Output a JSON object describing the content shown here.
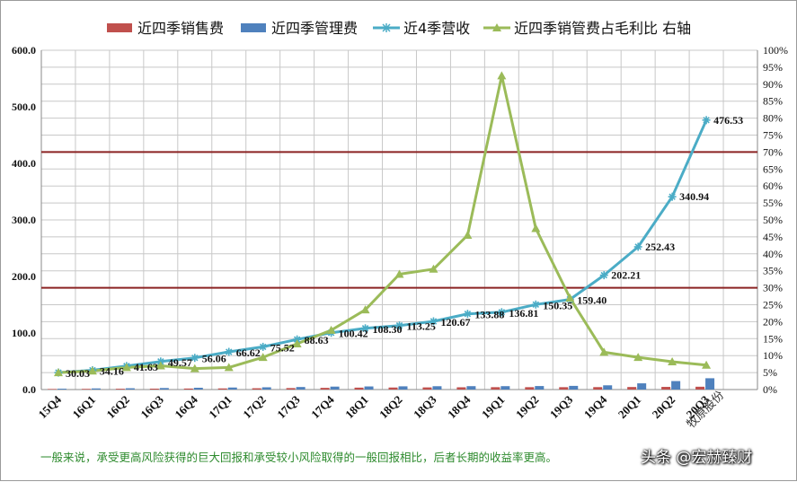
{
  "chart_data": {
    "type": "bar+line",
    "categories": [
      "15Q4",
      "16Q1",
      "16Q2",
      "16Q3",
      "16Q4",
      "17Q1",
      "17Q2",
      "17Q3",
      "17Q4",
      "18Q1",
      "18Q2",
      "18Q3",
      "18Q4",
      "19Q1",
      "19Q2",
      "19Q3",
      "19Q4",
      "20Q1",
      "20Q2",
      "20Q3"
    ],
    "series": [
      {
        "name": "近四季销售费",
        "type": "bar",
        "axis": "left",
        "color": "#c0504d",
        "values": [
          1.0,
          1.2,
          1.4,
          1.6,
          1.8,
          2.0,
          2.3,
          2.6,
          3.0,
          3.4,
          3.6,
          3.8,
          4.0,
          4.2,
          4.2,
          4.2,
          4.3,
          4.5,
          4.7,
          5.0
        ]
      },
      {
        "name": "近四季管理费",
        "type": "bar",
        "axis": "left",
        "color": "#4f81bd",
        "values": [
          1.5,
          2.0,
          2.3,
          2.7,
          3.2,
          3.6,
          4.0,
          4.5,
          5.2,
          5.5,
          5.7,
          5.9,
          6.0,
          6.0,
          6.2,
          6.5,
          7.5,
          11.0,
          15.0,
          20.0
        ]
      },
      {
        "name": "近4季营收",
        "type": "line",
        "axis": "left",
        "color": "#4bacc6",
        "values": [
          30.03,
          34.16,
          41.63,
          49.57,
          56.06,
          66.62,
          75.52,
          88.63,
          100.42,
          108.3,
          113.25,
          120.67,
          133.88,
          136.81,
          150.35,
          159.4,
          202.21,
          252.43,
          340.94,
          476.53
        ]
      },
      {
        "name": "近四季销管费占毛利比 右轴",
        "type": "line",
        "axis": "right",
        "color": "#9bbb59",
        "values": [
          5.0,
          5.5,
          6.5,
          7.0,
          6.2,
          6.5,
          9.5,
          13.5,
          17.5,
          23.5,
          34.0,
          35.5,
          45.5,
          92.5,
          47.5,
          27.0,
          11.0,
          9.5,
          8.2,
          7.2
        ]
      }
    ],
    "data_labels": [
      "30.03",
      "34.16",
      "41.63",
      "49.57",
      "56.06",
      "66.62",
      "75.52",
      "88.63",
      "100.42",
      "108.30",
      "113.25",
      "120.67",
      "133.88",
      "136.81",
      "150.35",
      "159.40",
      "202.21",
      "252.43",
      "340.94",
      "476.53"
    ],
    "extra_category": "牧原股份",
    "y_left": {
      "min": 0,
      "max": 600,
      "ticks": [
        "0.0",
        "100.0",
        "200.0",
        "300.0",
        "400.0",
        "500.0",
        "600.0"
      ]
    },
    "y_right": {
      "min": 0,
      "max": 100,
      "ticks": [
        "0%",
        "5%",
        "10%",
        "15%",
        "20%",
        "25%",
        "30%",
        "35%",
        "40%",
        "45%",
        "50%",
        "55%",
        "60%",
        "65%",
        "70%",
        "75%",
        "80%",
        "85%",
        "90%",
        "95%",
        "100%"
      ]
    },
    "reference_lines_right_axis": [
      30,
      70
    ],
    "reference_line_color": "#8b2323",
    "grid": true,
    "legend_position": "top"
  },
  "footnote": "一般来说，承受更高风险获得的巨大回报和承受较小风险取得的一般回报相比，后者长期的收益率更高。",
  "watermark": "头条 @宏赫臻财",
  "colors": {
    "grid": "#c8c8c8",
    "axis": "#888888",
    "footnote": "#2e8b2e"
  }
}
